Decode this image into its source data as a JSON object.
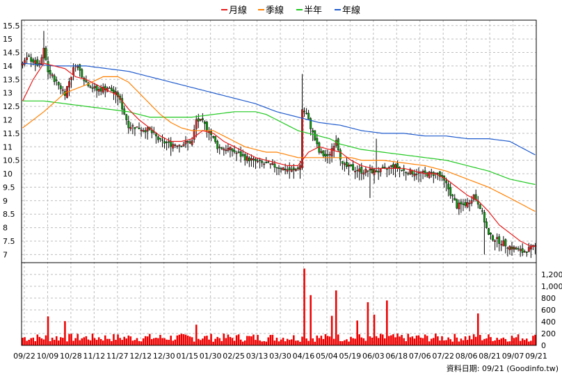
{
  "legend": {
    "items": [
      {
        "label": "月線",
        "color": "#e61a1a"
      },
      {
        "label": "季線",
        "color": "#ff8000"
      },
      {
        "label": "半年",
        "color": "#1ec81e"
      },
      {
        "label": "年線",
        "color": "#1e5acd"
      }
    ]
  },
  "footer": {
    "text": "資料日期: 09/21 (Goodinfo.tw)"
  },
  "colors": {
    "up": "#e02020",
    "down": "#0a9a0a",
    "volume": "#ee0000",
    "wick": "#000000",
    "grid": "#bdbdbd"
  },
  "chart_data": {
    "type": "candlestick",
    "price_ylim": [
      6.7,
      15.7
    ],
    "price_ticks": [
      "15.5",
      "15",
      "14.5",
      "14",
      "13.5",
      "13",
      "12.5",
      "12",
      "11.5",
      "11",
      "10.5",
      "10",
      "9.5",
      "9",
      "8.5",
      "8",
      "7.5",
      "7"
    ],
    "volume_ylim": [
      0,
      1400
    ],
    "volume_ticks": [
      "1,200",
      "1,000",
      "800",
      "600",
      "400",
      "200",
      "0"
    ],
    "x_ticks": [
      "09/22",
      "10/09",
      "10/28",
      "11/12",
      "11/27",
      "12/12",
      "12/30",
      "01/15",
      "01/30",
      "02/25",
      "03/13",
      "03/30",
      "04/16",
      "05/04",
      "05/19",
      "06/03",
      "06/18",
      "07/06",
      "07/22",
      "08/06",
      "08/21",
      "09/07",
      "09/21"
    ],
    "days": 243,
    "price_path": [
      [
        0,
        14.1
      ],
      [
        3,
        14.3
      ],
      [
        8,
        14.0
      ],
      [
        10,
        14.6
      ],
      [
        12,
        13.8
      ],
      [
        15,
        13.5
      ],
      [
        20,
        13.0
      ],
      [
        25,
        14.1
      ],
      [
        30,
        13.4
      ],
      [
        35,
        13.1
      ],
      [
        40,
        13.2
      ],
      [
        45,
        12.9
      ],
      [
        50,
        11.8
      ],
      [
        55,
        11.7
      ],
      [
        60,
        11.6
      ],
      [
        65,
        11.2
      ],
      [
        70,
        11.1
      ],
      [
        75,
        11.1
      ],
      [
        80,
        11.2
      ],
      [
        82,
        12.0
      ],
      [
        85,
        11.9
      ],
      [
        88,
        11.6
      ],
      [
        92,
        11.0
      ],
      [
        98,
        10.9
      ],
      [
        105,
        10.6
      ],
      [
        112,
        10.4
      ],
      [
        118,
        10.3
      ],
      [
        123,
        10.2
      ],
      [
        128,
        10.1
      ],
      [
        131,
        10.3
      ],
      [
        132,
        12.4
      ],
      [
        134,
        12.2
      ],
      [
        137,
        11.5
      ],
      [
        140,
        10.8
      ],
      [
        144,
        10.6
      ],
      [
        148,
        11.3
      ],
      [
        151,
        10.3
      ],
      [
        160,
        10.1
      ],
      [
        170,
        10.1
      ],
      [
        175,
        10.3
      ],
      [
        180,
        10.1
      ],
      [
        190,
        10.0
      ],
      [
        196,
        10.0
      ],
      [
        200,
        9.6
      ],
      [
        205,
        8.8
      ],
      [
        210,
        8.9
      ],
      [
        213,
        9.2
      ],
      [
        216,
        8.8
      ],
      [
        220,
        7.7
      ],
      [
        225,
        7.5
      ],
      [
        230,
        7.3
      ],
      [
        236,
        7.1
      ],
      [
        242,
        7.3
      ]
    ],
    "ma_month": [
      [
        0,
        12.7
      ],
      [
        5,
        13.5
      ],
      [
        10,
        14.1
      ],
      [
        15,
        14.0
      ],
      [
        20,
        13.9
      ],
      [
        25,
        13.6
      ],
      [
        30,
        13.5
      ],
      [
        35,
        13.3
      ],
      [
        40,
        13.1
      ],
      [
        45,
        12.9
      ],
      [
        50,
        12.4
      ],
      [
        55,
        12.0
      ],
      [
        60,
        11.7
      ],
      [
        65,
        11.4
      ],
      [
        70,
        11.2
      ],
      [
        75,
        11.2
      ],
      [
        80,
        11.3
      ],
      [
        85,
        11.6
      ],
      [
        90,
        11.5
      ],
      [
        95,
        11.2
      ],
      [
        100,
        11.0
      ],
      [
        105,
        10.8
      ],
      [
        110,
        10.6
      ],
      [
        115,
        10.5
      ],
      [
        120,
        10.4
      ],
      [
        125,
        10.3
      ],
      [
        130,
        10.3
      ],
      [
        135,
        10.8
      ],
      [
        140,
        11.0
      ],
      [
        145,
        10.9
      ],
      [
        150,
        10.8
      ],
      [
        155,
        10.5
      ],
      [
        160,
        10.3
      ],
      [
        165,
        10.2
      ],
      [
        170,
        10.2
      ],
      [
        175,
        10.2
      ],
      [
        180,
        10.2
      ],
      [
        185,
        10.1
      ],
      [
        190,
        10.0
      ],
      [
        195,
        10.0
      ],
      [
        200,
        9.8
      ],
      [
        205,
        9.5
      ],
      [
        210,
        9.2
      ],
      [
        215,
        9.0
      ],
      [
        220,
        8.6
      ],
      [
        225,
        8.1
      ],
      [
        230,
        7.8
      ],
      [
        235,
        7.5
      ],
      [
        240,
        7.3
      ],
      [
        242,
        7.3
      ]
    ],
    "ma_quarter": [
      [
        0,
        11.7
      ],
      [
        10,
        12.3
      ],
      [
        20,
        13.0
      ],
      [
        30,
        13.3
      ],
      [
        38,
        13.6
      ],
      [
        45,
        13.6
      ],
      [
        50,
        13.4
      ],
      [
        55,
        13.0
      ],
      [
        60,
        12.6
      ],
      [
        65,
        12.2
      ],
      [
        70,
        11.9
      ],
      [
        75,
        11.7
      ],
      [
        80,
        11.6
      ],
      [
        85,
        11.6
      ],
      [
        90,
        11.6
      ],
      [
        95,
        11.4
      ],
      [
        100,
        11.2
      ],
      [
        105,
        11.0
      ],
      [
        110,
        10.9
      ],
      [
        115,
        10.8
      ],
      [
        120,
        10.8
      ],
      [
        125,
        10.7
      ],
      [
        130,
        10.6
      ],
      [
        135,
        10.6
      ],
      [
        140,
        10.6
      ],
      [
        145,
        10.6
      ],
      [
        150,
        10.6
      ],
      [
        155,
        10.6
      ],
      [
        160,
        10.5
      ],
      [
        170,
        10.5
      ],
      [
        180,
        10.4
      ],
      [
        190,
        10.3
      ],
      [
        200,
        10.1
      ],
      [
        210,
        9.8
      ],
      [
        220,
        9.5
      ],
      [
        230,
        9.1
      ],
      [
        242,
        8.6
      ]
    ],
    "ma_half": [
      [
        0,
        12.7
      ],
      [
        10,
        12.7
      ],
      [
        20,
        12.6
      ],
      [
        30,
        12.5
      ],
      [
        40,
        12.4
      ],
      [
        50,
        12.3
      ],
      [
        60,
        12.1
      ],
      [
        70,
        12.1
      ],
      [
        80,
        12.1
      ],
      [
        90,
        12.2
      ],
      [
        100,
        12.3
      ],
      [
        110,
        12.3
      ],
      [
        115,
        12.2
      ],
      [
        120,
        12.0
      ],
      [
        125,
        11.8
      ],
      [
        130,
        11.6
      ],
      [
        135,
        11.5
      ],
      [
        140,
        11.4
      ],
      [
        145,
        11.3
      ],
      [
        150,
        11.1
      ],
      [
        155,
        11.0
      ],
      [
        160,
        10.9
      ],
      [
        170,
        10.8
      ],
      [
        180,
        10.7
      ],
      [
        190,
        10.6
      ],
      [
        200,
        10.5
      ],
      [
        210,
        10.3
      ],
      [
        220,
        10.1
      ],
      [
        230,
        9.8
      ],
      [
        242,
        9.6
      ]
    ],
    "ma_year": [
      [
        0,
        14.1
      ],
      [
        15,
        14.0
      ],
      [
        30,
        14.0
      ],
      [
        40,
        13.9
      ],
      [
        50,
        13.8
      ],
      [
        60,
        13.6
      ],
      [
        70,
        13.4
      ],
      [
        80,
        13.2
      ],
      [
        90,
        13.0
      ],
      [
        100,
        12.8
      ],
      [
        110,
        12.6
      ],
      [
        120,
        12.3
      ],
      [
        130,
        12.1
      ],
      [
        140,
        11.9
      ],
      [
        150,
        11.8
      ],
      [
        160,
        11.6
      ],
      [
        170,
        11.5
      ],
      [
        180,
        11.5
      ],
      [
        190,
        11.4
      ],
      [
        200,
        11.4
      ],
      [
        210,
        11.3
      ],
      [
        220,
        11.3
      ],
      [
        230,
        11.2
      ],
      [
        242,
        10.7
      ]
    ],
    "spikes": [
      {
        "day": 10,
        "high": 15.3
      },
      {
        "day": 132,
        "high": 13.7
      },
      {
        "day": 167,
        "high": 11.3
      },
      {
        "day": 164,
        "low": 9.1
      },
      {
        "day": 218,
        "low": 7.0
      }
    ],
    "volume_spikes": [
      {
        "day": 133,
        "value": 1300
      },
      {
        "day": 136,
        "value": 850
      },
      {
        "day": 148,
        "value": 930
      },
      {
        "day": 146,
        "value": 500
      },
      {
        "day": 163,
        "value": 730
      },
      {
        "day": 172,
        "value": 760
      },
      {
        "day": 166,
        "value": 520
      },
      {
        "day": 158,
        "value": 420
      },
      {
        "day": 215,
        "value": 540
      },
      {
        "day": 12,
        "value": 490
      },
      {
        "day": 20,
        "value": 410
      },
      {
        "day": 82,
        "value": 350
      }
    ]
  }
}
